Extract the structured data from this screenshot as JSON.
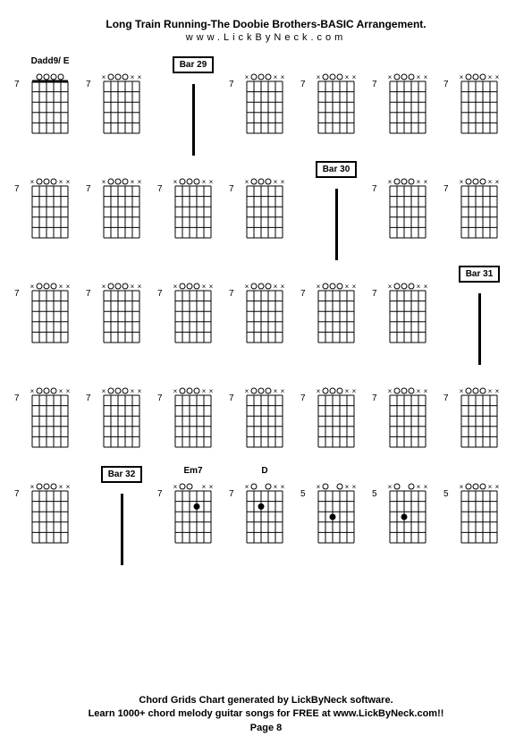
{
  "header": {
    "title": "Long Train Running-The Doobie Brothers-BASIC Arrangement.",
    "url": "www.LickByNeck.com"
  },
  "footer": {
    "line1": "Chord Grids Chart generated by LickByNeck software.",
    "line2": "Learn 1000+ chord melody guitar songs for FREE at www.LickByNeck.com!!",
    "page": "Page 8"
  },
  "chords": [
    {
      "type": "chord",
      "label": "Dadd9/ E",
      "fret": "7",
      "mutes": [
        0,
        0,
        0,
        0,
        0,
        0
      ],
      "dots": [],
      "opens": [
        2,
        3,
        4,
        5
      ],
      "nut": true
    },
    {
      "type": "chord",
      "label": "",
      "fret": "7",
      "mutes": [
        1,
        0,
        0,
        0,
        1,
        1
      ],
      "dots": [],
      "opens": [
        2,
        3,
        4
      ],
      "nut": false
    },
    {
      "type": "bar",
      "label": "Bar 29"
    },
    {
      "type": "chord",
      "label": "",
      "fret": "7",
      "mutes": [
        1,
        0,
        0,
        0,
        1,
        1
      ],
      "dots": [],
      "opens": [
        2,
        3,
        4
      ],
      "nut": false
    },
    {
      "type": "chord",
      "label": "",
      "fret": "7",
      "mutes": [
        1,
        0,
        0,
        0,
        1,
        1
      ],
      "dots": [],
      "opens": [
        2,
        3,
        4
      ],
      "nut": false
    },
    {
      "type": "chord",
      "label": "",
      "fret": "7",
      "mutes": [
        1,
        0,
        0,
        0,
        1,
        1
      ],
      "dots": [],
      "opens": [
        2,
        3,
        4
      ],
      "nut": false
    },
    {
      "type": "chord",
      "label": "",
      "fret": "7",
      "mutes": [
        1,
        0,
        0,
        0,
        1,
        1
      ],
      "dots": [],
      "opens": [
        2,
        3,
        4
      ],
      "nut": false
    },
    {
      "type": "chord",
      "label": "",
      "fret": "7",
      "mutes": [
        1,
        0,
        0,
        0,
        1,
        1
      ],
      "dots": [],
      "opens": [
        2,
        3,
        4
      ],
      "nut": false
    },
    {
      "type": "chord",
      "label": "",
      "fret": "7",
      "mutes": [
        1,
        0,
        0,
        0,
        1,
        1
      ],
      "dots": [],
      "opens": [
        2,
        3,
        4
      ],
      "nut": false
    },
    {
      "type": "chord",
      "label": "",
      "fret": "7",
      "mutes": [
        1,
        0,
        0,
        0,
        1,
        1
      ],
      "dots": [],
      "opens": [
        2,
        3,
        4
      ],
      "nut": false
    },
    {
      "type": "chord",
      "label": "",
      "fret": "7",
      "mutes": [
        1,
        0,
        0,
        0,
        1,
        1
      ],
      "dots": [],
      "opens": [
        2,
        3,
        4
      ],
      "nut": false
    },
    {
      "type": "bar",
      "label": "Bar 30"
    },
    {
      "type": "chord",
      "label": "",
      "fret": "7",
      "mutes": [
        1,
        0,
        0,
        0,
        1,
        1
      ],
      "dots": [],
      "opens": [
        2,
        3,
        4
      ],
      "nut": false
    },
    {
      "type": "chord",
      "label": "",
      "fret": "7",
      "mutes": [
        1,
        0,
        0,
        0,
        1,
        1
      ],
      "dots": [],
      "opens": [
        2,
        3,
        4
      ],
      "nut": false
    },
    {
      "type": "chord",
      "label": "",
      "fret": "7",
      "mutes": [
        1,
        0,
        0,
        0,
        1,
        1
      ],
      "dots": [],
      "opens": [
        2,
        3,
        4
      ],
      "nut": false
    },
    {
      "type": "chord",
      "label": "",
      "fret": "7",
      "mutes": [
        1,
        0,
        0,
        0,
        1,
        1
      ],
      "dots": [],
      "opens": [
        2,
        3,
        4
      ],
      "nut": false
    },
    {
      "type": "chord",
      "label": "",
      "fret": "7",
      "mutes": [
        1,
        0,
        0,
        0,
        1,
        1
      ],
      "dots": [],
      "opens": [
        2,
        3,
        4
      ],
      "nut": false
    },
    {
      "type": "chord",
      "label": "",
      "fret": "7",
      "mutes": [
        1,
        0,
        0,
        0,
        1,
        1
      ],
      "dots": [],
      "opens": [
        2,
        3,
        4
      ],
      "nut": false
    },
    {
      "type": "chord",
      "label": "",
      "fret": "7",
      "mutes": [
        1,
        0,
        0,
        0,
        1,
        1
      ],
      "dots": [],
      "opens": [
        2,
        3,
        4
      ],
      "nut": false
    },
    {
      "type": "chord",
      "label": "",
      "fret": "7",
      "mutes": [
        1,
        0,
        0,
        0,
        1,
        1
      ],
      "dots": [],
      "opens": [
        2,
        3,
        4
      ],
      "nut": false
    },
    {
      "type": "bar",
      "label": "Bar 31"
    },
    {
      "type": "chord",
      "label": "",
      "fret": "7",
      "mutes": [
        1,
        0,
        0,
        0,
        1,
        1
      ],
      "dots": [],
      "opens": [
        2,
        3,
        4
      ],
      "nut": false
    },
    {
      "type": "chord",
      "label": "",
      "fret": "7",
      "mutes": [
        1,
        0,
        0,
        0,
        1,
        1
      ],
      "dots": [],
      "opens": [
        2,
        3,
        4
      ],
      "nut": false
    },
    {
      "type": "chord",
      "label": "",
      "fret": "7",
      "mutes": [
        1,
        0,
        0,
        0,
        1,
        1
      ],
      "dots": [],
      "opens": [
        2,
        3,
        4
      ],
      "nut": false
    },
    {
      "type": "chord",
      "label": "",
      "fret": "7",
      "mutes": [
        1,
        0,
        0,
        0,
        1,
        1
      ],
      "dots": [],
      "opens": [
        2,
        3,
        4
      ],
      "nut": false
    },
    {
      "type": "chord",
      "label": "",
      "fret": "7",
      "mutes": [
        1,
        0,
        0,
        0,
        1,
        1
      ],
      "dots": [],
      "opens": [
        2,
        3,
        4
      ],
      "nut": false
    },
    {
      "type": "chord",
      "label": "",
      "fret": "7",
      "mutes": [
        1,
        0,
        0,
        0,
        1,
        1
      ],
      "dots": [],
      "opens": [
        2,
        3,
        4
      ],
      "nut": false
    },
    {
      "type": "chord",
      "label": "",
      "fret": "7",
      "mutes": [
        1,
        0,
        0,
        0,
        1,
        1
      ],
      "dots": [],
      "opens": [
        2,
        3,
        4
      ],
      "nut": false
    },
    {
      "type": "chord",
      "label": "",
      "fret": "7",
      "mutes": [
        1,
        0,
        0,
        0,
        1,
        1
      ],
      "dots": [],
      "opens": [
        2,
        3,
        4
      ],
      "nut": false
    },
    {
      "type": "bar",
      "label": "Bar 32"
    },
    {
      "type": "chord",
      "label": "Em7",
      "fret": "7",
      "mutes": [
        1,
        0,
        0,
        0,
        1,
        1
      ],
      "dots": [
        [
          4,
          2
        ]
      ],
      "opens": [
        2,
        3
      ],
      "nut": false
    },
    {
      "type": "chord",
      "label": "D",
      "fret": "7",
      "mutes": [
        1,
        0,
        0,
        0,
        1,
        1
      ],
      "dots": [
        [
          3,
          2
        ]
      ],
      "opens": [
        2,
        4
      ],
      "nut": false
    },
    {
      "type": "chord",
      "label": "",
      "fret": "5",
      "mutes": [
        1,
        0,
        0,
        0,
        1,
        1
      ],
      "dots": [
        [
          3,
          3
        ]
      ],
      "opens": [
        2,
        4
      ],
      "nut": false
    },
    {
      "type": "chord",
      "label": "",
      "fret": "5",
      "mutes": [
        1,
        0,
        0,
        0,
        1,
        1
      ],
      "dots": [
        [
          3,
          3
        ]
      ],
      "opens": [
        2,
        4
      ],
      "nut": false
    },
    {
      "type": "chord",
      "label": "",
      "fret": "5",
      "mutes": [
        1,
        0,
        0,
        0,
        1,
        1
      ],
      "dots": [],
      "opens": [
        2,
        3,
        4
      ],
      "nut": false
    }
  ],
  "style": {
    "grid_color": "#000000",
    "bg_color": "#ffffff",
    "text_color": "#000000",
    "strings": 6,
    "frets": 5
  }
}
